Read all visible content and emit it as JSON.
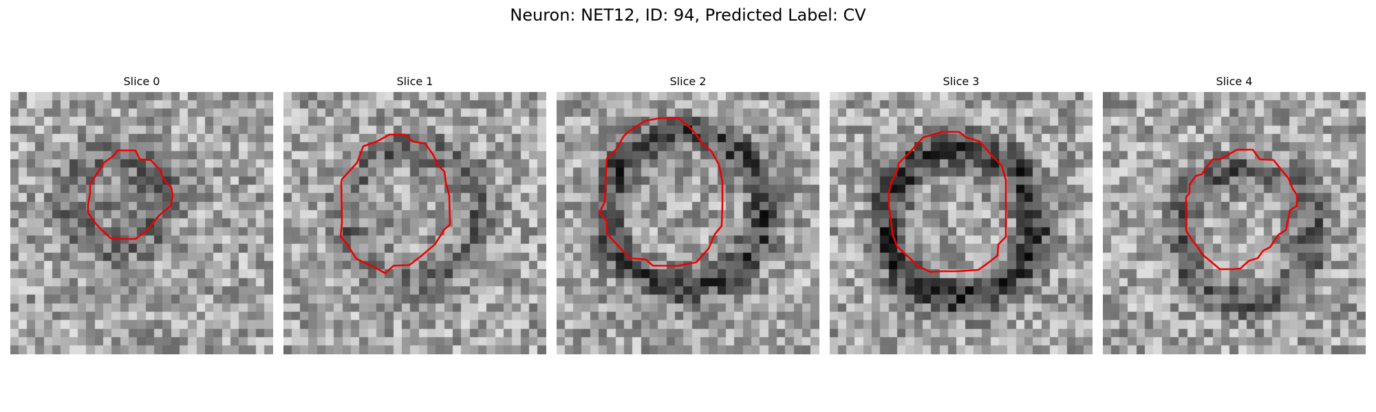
{
  "figure": {
    "title": "Neuron: NET12, ID: 94, Predicted Label: CV"
  },
  "colors": {
    "outline": "#ee0000",
    "background": "#ffffff"
  },
  "panels": [
    {
      "label": "Slice 0"
    },
    {
      "label": "Slice 1"
    },
    {
      "label": "Slice 2"
    },
    {
      "label": "Slice 3"
    },
    {
      "label": "Slice 4"
    }
  ]
}
